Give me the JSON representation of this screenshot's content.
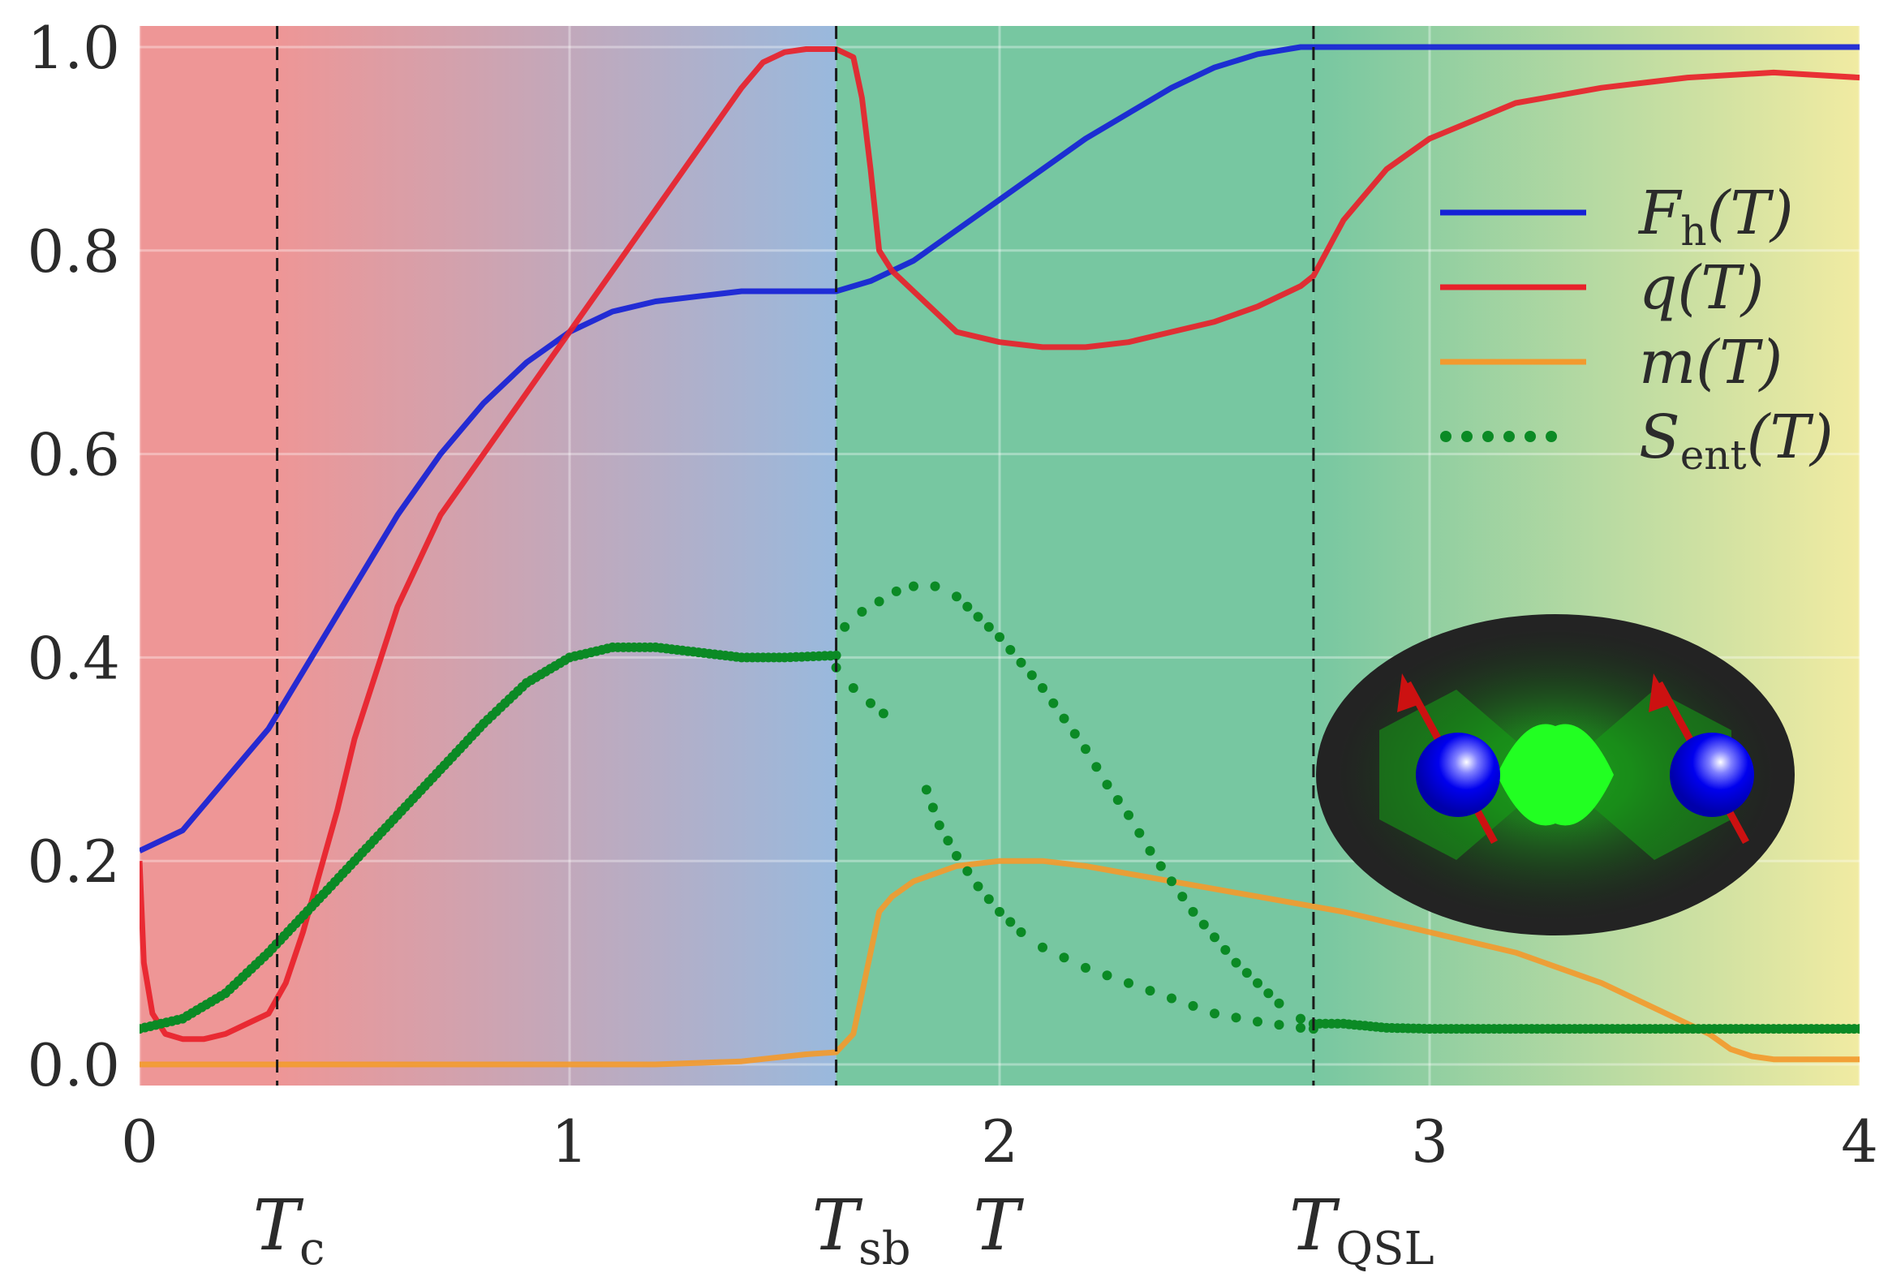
{
  "chart_data": {
    "type": "line",
    "xlim": [
      0,
      4
    ],
    "ylim": [
      0,
      1.0
    ],
    "x_ticks": [
      "0",
      "1",
      "2",
      "3",
      "4"
    ],
    "y_ticks": [
      "0.0",
      "0.2",
      "0.4",
      "0.6",
      "0.8",
      "1.0"
    ],
    "xlabel": "T",
    "grid": true,
    "legend_position": "right",
    "phase_markers": [
      {
        "name": "T",
        "sub": "c",
        "x": 0.32
      },
      {
        "name": "T",
        "sub": "sb",
        "x": 1.62
      },
      {
        "name": "T",
        "sub": "QSL",
        "x": 2.73
      }
    ],
    "background_regions": [
      {
        "from": 0.0,
        "to": 0.32,
        "color": "#ee9696"
      },
      {
        "from": 0.32,
        "to": 1.62,
        "color_from": "#ee9696",
        "color_to": "#99b9dd"
      },
      {
        "from": 1.62,
        "to": 2.73,
        "color": "#77c7a1"
      },
      {
        "from": 2.73,
        "to": 4.0,
        "color_from": "#77c7a1",
        "color_to": "#f1eba2"
      }
    ],
    "series": [
      {
        "name": "F_h(T)",
        "label_main": "F",
        "label_sub": "h",
        "label_rest": "(T)",
        "color": "#1521d6",
        "style": "solid",
        "x": [
          0,
          0.1,
          0.2,
          0.3,
          0.4,
          0.5,
          0.6,
          0.7,
          0.8,
          0.9,
          1.0,
          1.1,
          1.2,
          1.3,
          1.4,
          1.5,
          1.62,
          1.7,
          1.8,
          1.9,
          2.0,
          2.1,
          2.2,
          2.3,
          2.4,
          2.5,
          2.6,
          2.7,
          2.8,
          2.9,
          3.0,
          3.5,
          4.0
        ],
        "y": [
          0.21,
          0.23,
          0.28,
          0.33,
          0.4,
          0.47,
          0.54,
          0.6,
          0.65,
          0.69,
          0.72,
          0.74,
          0.75,
          0.755,
          0.76,
          0.76,
          0.76,
          0.77,
          0.79,
          0.82,
          0.85,
          0.88,
          0.91,
          0.935,
          0.96,
          0.98,
          0.993,
          1.0,
          1.0,
          1.0,
          1.0,
          1.0,
          1.0
        ]
      },
      {
        "name": "q(T)",
        "label_main": "q",
        "label_sub": "",
        "label_rest": "(T)",
        "color": "#e8212a",
        "style": "solid",
        "x": [
          0,
          0.01,
          0.03,
          0.06,
          0.1,
          0.15,
          0.2,
          0.25,
          0.3,
          0.34,
          0.38,
          0.42,
          0.46,
          0.5,
          0.6,
          0.7,
          0.8,
          0.9,
          1.0,
          1.1,
          1.2,
          1.3,
          1.4,
          1.45,
          1.5,
          1.55,
          1.62,
          1.66,
          1.68,
          1.7,
          1.72,
          1.75,
          1.8,
          1.9,
          2.0,
          2.1,
          2.2,
          2.3,
          2.4,
          2.5,
          2.6,
          2.7,
          2.73,
          2.8,
          2.9,
          3.0,
          3.2,
          3.4,
          3.6,
          3.8,
          4.0
        ],
        "y": [
          0.2,
          0.1,
          0.05,
          0.03,
          0.025,
          0.025,
          0.03,
          0.04,
          0.05,
          0.08,
          0.13,
          0.19,
          0.25,
          0.32,
          0.45,
          0.54,
          0.6,
          0.66,
          0.72,
          0.78,
          0.84,
          0.9,
          0.96,
          0.985,
          0.995,
          0.998,
          0.998,
          0.99,
          0.95,
          0.88,
          0.8,
          0.78,
          0.76,
          0.72,
          0.71,
          0.705,
          0.705,
          0.71,
          0.72,
          0.73,
          0.745,
          0.765,
          0.775,
          0.83,
          0.88,
          0.91,
          0.945,
          0.96,
          0.97,
          0.975,
          0.97
        ]
      },
      {
        "name": "m(T)",
        "label_main": "m",
        "label_sub": "",
        "label_rest": "(T)",
        "color": "#f29a2e",
        "style": "solid",
        "x": [
          0,
          0.5,
          1.0,
          1.2,
          1.4,
          1.55,
          1.62,
          1.66,
          1.68,
          1.7,
          1.72,
          1.75,
          1.8,
          1.9,
          2.0,
          2.05,
          2.1,
          2.2,
          2.4,
          2.6,
          2.8,
          3.0,
          3.2,
          3.4,
          3.55,
          3.65,
          3.7,
          3.75,
          3.8,
          4.0
        ],
        "y": [
          0.0,
          0.0,
          0.0,
          0.0,
          0.003,
          0.01,
          0.012,
          0.03,
          0.07,
          0.11,
          0.15,
          0.165,
          0.18,
          0.195,
          0.2,
          0.2,
          0.2,
          0.195,
          0.18,
          0.165,
          0.15,
          0.13,
          0.11,
          0.08,
          0.05,
          0.03,
          0.015,
          0.008,
          0.005,
          0.005
        ]
      },
      {
        "name": "S_ent(T)",
        "label_main": "S",
        "label_sub": "ent",
        "label_rest": "(T)",
        "color": "#0b8a25",
        "style": "dotted",
        "branches": [
          {
            "x": [
              0,
              0.1,
              0.2,
              0.3,
              0.4,
              0.5,
              0.6,
              0.7,
              0.8,
              0.9,
              1.0,
              1.1,
              1.2,
              1.3,
              1.4,
              1.5,
              1.62
            ],
            "y": [
              0.035,
              0.045,
              0.07,
              0.11,
              0.155,
              0.2,
              0.245,
              0.29,
              0.335,
              0.375,
              0.4,
              0.41,
              0.41,
              0.405,
              0.4,
              0.4,
              0.402
            ]
          },
          {
            "x": [
              1.62,
              1.66,
              1.7,
              1.73
            ],
            "y": [
              0.39,
              0.37,
              0.355,
              0.345
            ]
          },
          {
            "x": [
              1.64,
              1.68,
              1.72,
              1.76,
              1.8,
              1.85,
              1.9,
              1.95,
              2.0,
              2.05,
              2.1,
              2.15,
              2.2,
              2.25,
              2.3,
              2.35,
              2.4,
              2.45,
              2.5,
              2.55,
              2.6,
              2.65,
              2.7,
              2.73
            ],
            "y": [
              0.43,
              0.445,
              0.455,
              0.465,
              0.47,
              0.47,
              0.46,
              0.44,
              0.42,
              0.395,
              0.37,
              0.34,
              0.31,
              0.275,
              0.245,
              0.21,
              0.18,
              0.15,
              0.125,
              0.1,
              0.08,
              0.06,
              0.045,
              0.04
            ]
          },
          {
            "x": [
              1.83,
              1.86,
              1.9,
              1.95,
              2.0,
              2.05,
              2.1,
              2.2,
              2.3,
              2.4,
              2.5,
              2.6,
              2.7,
              2.73
            ],
            "y": [
              0.27,
              0.235,
              0.205,
              0.175,
              0.15,
              0.13,
              0.115,
              0.095,
              0.08,
              0.065,
              0.05,
              0.042,
              0.036,
              0.035
            ]
          },
          {
            "x": [
              2.73,
              2.8,
              2.9,
              3.0,
              3.1,
              3.2,
              3.3,
              3.4,
              3.5,
              3.6,
              3.7,
              3.8,
              3.9,
              4.0
            ],
            "y": [
              0.04,
              0.04,
              0.036,
              0.035,
              0.035,
              0.035,
              0.035,
              0.035,
              0.035,
              0.035,
              0.035,
              0.035,
              0.035,
              0.035
            ]
          }
        ]
      }
    ],
    "inset": {
      "description_icon": "entangled-spin-pair-icon",
      "ellipse_color": "#232323",
      "glow_color": "#22ee22",
      "sphere_color": "#0000ee",
      "arrow_color": "#cc1111"
    }
  }
}
